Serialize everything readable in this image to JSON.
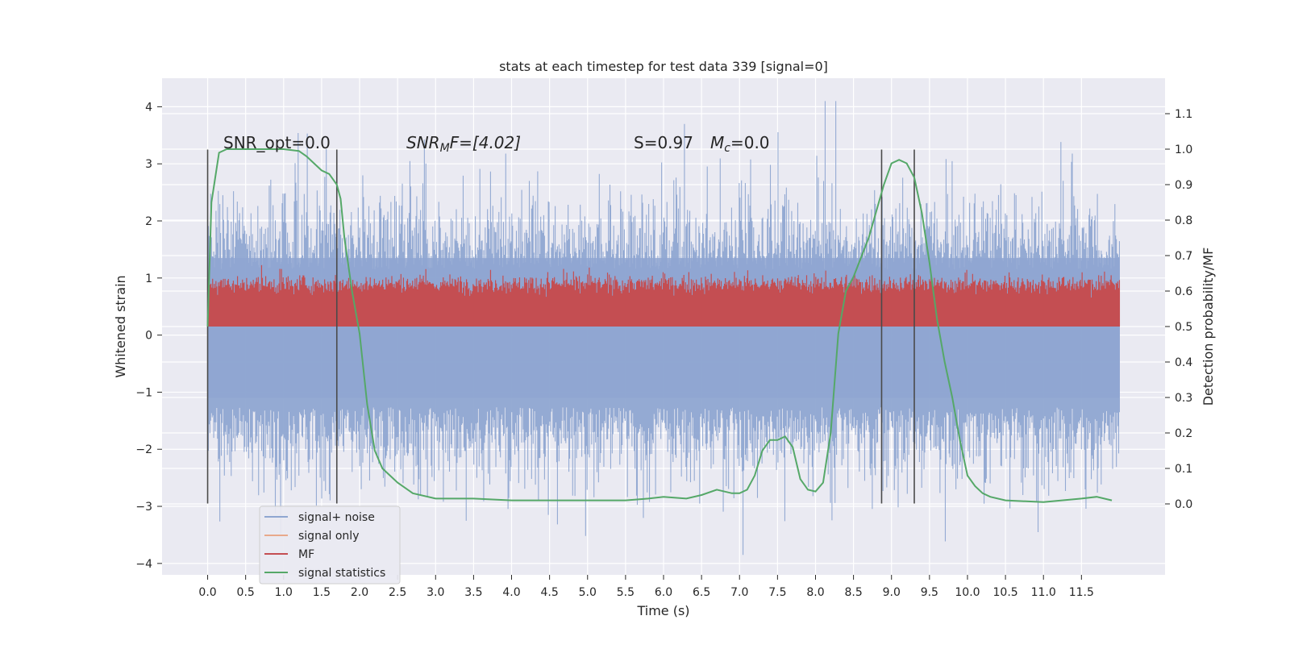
{
  "chart_data": {
    "type": "line",
    "title": "stats at each timestep for test data 339 [signal=0]",
    "xlabel": "Time (s)",
    "ylabel": "Whitened strain",
    "y2label": "Detection probability/MF",
    "xlim": [
      -0.6,
      12.6
    ],
    "ylim": [
      -4.2,
      4.5
    ],
    "y2lim": [
      -0.2,
      1.2
    ],
    "x_ticks": [
      "0.0",
      "0.5",
      "1.0",
      "1.5",
      "2.0",
      "2.5",
      "3.0",
      "3.5",
      "4.0",
      "4.5",
      "5.0",
      "5.5",
      "6.0",
      "6.5",
      "7.0",
      "7.5",
      "8.0",
      "8.5",
      "9.0",
      "9.5",
      "10.0",
      "10.5",
      "11.0",
      "11.5"
    ],
    "y_ticks": [
      "4",
      "3",
      "2",
      "1",
      "0",
      "−1",
      "−2",
      "−3",
      "−4"
    ],
    "y2_ticks": [
      "1.1",
      "1.0",
      "0.9",
      "0.8",
      "0.7",
      "0.6",
      "0.5",
      "0.4",
      "0.3",
      "0.2",
      "0.1",
      "0.0"
    ],
    "grid": true,
    "legend_position": "lower-left",
    "annotations": {
      "snr_opt": "SNR_opt=0.0",
      "snr_mf_base": "SNR",
      "snr_mf_sub": "M",
      "snr_mf_tail": "F=[4.02]",
      "s_value": "S=0.97",
      "mc_base": "M",
      "mc_sub": "c",
      "mc_tail": "=0.0"
    },
    "vertical_lines_x": [
      0.0,
      1.7,
      8.87,
      9.3
    ],
    "series": [
      {
        "name": "signal+ noise",
        "color": "#8fa6d1",
        "x_range": [
          0.0,
          12.0
        ],
        "envelope_pos": 2.1,
        "envelope_neg": -2.3,
        "peak_max": 4.1,
        "peak_min": -3.85
      },
      {
        "name": "signal only",
        "color": "#e8a98b",
        "values": []
      },
      {
        "name": "MF",
        "color": "#c44e52",
        "x_range": [
          0.0,
          12.0
        ],
        "y2_low": 0.5,
        "y2_high": 0.64
      },
      {
        "name": "signal statistics",
        "color": "#55a868",
        "x": [
          0.0,
          0.05,
          0.1,
          0.15,
          0.25,
          0.5,
          0.8,
          1.0,
          1.2,
          1.3,
          1.4,
          1.5,
          1.6,
          1.7,
          1.75,
          1.8,
          1.9,
          2.0,
          2.1,
          2.2,
          2.3,
          2.5,
          2.7,
          3.0,
          3.5,
          4.0,
          4.5,
          5.0,
          5.5,
          5.8,
          6.0,
          6.3,
          6.5,
          6.7,
          6.9,
          7.0,
          7.1,
          7.2,
          7.3,
          7.4,
          7.5,
          7.6,
          7.7,
          7.8,
          7.9,
          8.0,
          8.1,
          8.2,
          8.3,
          8.4,
          8.5,
          8.7,
          8.9,
          9.0,
          9.1,
          9.2,
          9.3,
          9.4,
          9.5,
          9.6,
          9.7,
          9.8,
          9.9,
          10.0,
          10.1,
          10.2,
          10.3,
          10.5,
          11.0,
          11.5,
          11.7,
          11.9
        ],
        "values": [
          0.5,
          0.85,
          0.92,
          0.99,
          1.0,
          1.0,
          1.0,
          1.0,
          0.995,
          0.98,
          0.96,
          0.94,
          0.93,
          0.9,
          0.86,
          0.75,
          0.6,
          0.48,
          0.28,
          0.15,
          0.1,
          0.06,
          0.03,
          0.015,
          0.015,
          0.01,
          0.01,
          0.01,
          0.01,
          0.015,
          0.02,
          0.015,
          0.025,
          0.04,
          0.03,
          0.03,
          0.04,
          0.08,
          0.15,
          0.18,
          0.18,
          0.19,
          0.16,
          0.07,
          0.04,
          0.035,
          0.06,
          0.2,
          0.48,
          0.6,
          0.64,
          0.75,
          0.9,
          0.96,
          0.97,
          0.96,
          0.92,
          0.82,
          0.68,
          0.52,
          0.4,
          0.3,
          0.18,
          0.08,
          0.05,
          0.03,
          0.02,
          0.01,
          0.005,
          0.015,
          0.02,
          0.01
        ]
      }
    ]
  }
}
